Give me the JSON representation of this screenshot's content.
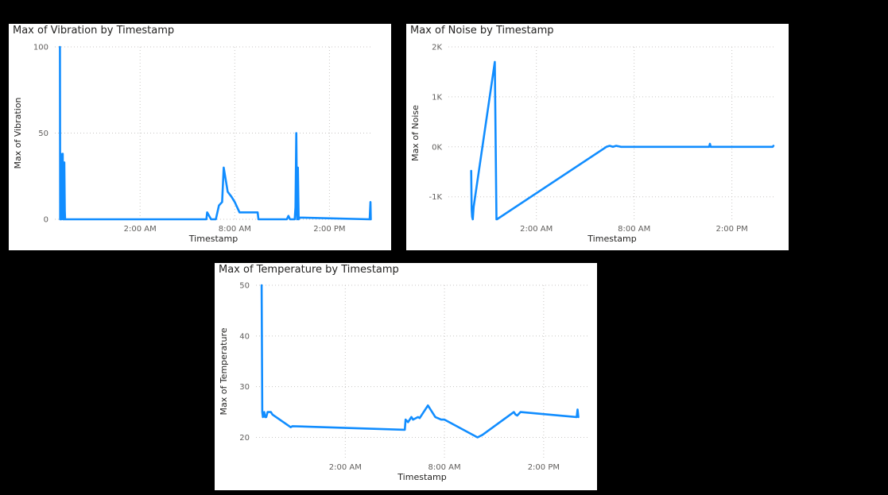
{
  "colors": {
    "background": "#000000",
    "panel": "#ffffff",
    "line": "#118DFF",
    "grid": "#c8c6c4",
    "text": "#252423",
    "tick": "#605e5c"
  },
  "chart_data": [
    {
      "id": "vibration",
      "type": "line",
      "title": "Max of Vibration by Timestamp",
      "xlabel": "Timestamp",
      "ylabel": "Max of Vibration",
      "xlim": [
        -3.4,
        16.7
      ],
      "ylim": [
        0,
        100
      ],
      "yticks": [
        {
          "v": 0,
          "label": "0"
        },
        {
          "v": 50,
          "label": "50"
        },
        {
          "v": 100,
          "label": "100"
        }
      ],
      "xticks": [
        {
          "v": 2,
          "label": "2:00 AM"
        },
        {
          "v": 8,
          "label": "8:00 AM"
        },
        {
          "v": 14,
          "label": "2:00 PM"
        }
      ],
      "grid": true,
      "series": [
        {
          "x": [
            -3.08,
            -3.06,
            -3.02,
            -2.98,
            -2.95,
            -2.9,
            -2.87,
            -2.84,
            -2.82,
            -2.8,
            -2.77,
            -2.75,
            -2.73,
            -2.7,
            -2.68,
            -2.65,
            -2.62,
            6.2,
            6.25,
            6.5,
            6.8,
            7.0,
            7.2,
            7.3,
            7.55,
            7.8,
            8.0,
            8.3,
            9.2,
            9.45,
            9.5,
            11.3,
            11.4,
            11.5,
            11.8,
            11.85,
            11.9,
            11.95,
            12.0,
            12.05,
            12.1,
            16.55,
            16.6,
            16.62
          ],
          "y": [
            100,
            0,
            38,
            0,
            5,
            38,
            0,
            25,
            0,
            33,
            5,
            0,
            0,
            0,
            0,
            0,
            0,
            0,
            4,
            0,
            0,
            8,
            10,
            30,
            16,
            13,
            10,
            4,
            4,
            4,
            0,
            0,
            2,
            0,
            0,
            7,
            50,
            0,
            30,
            0,
            1,
            0,
            10,
            0
          ]
        }
      ]
    },
    {
      "id": "noise",
      "type": "line",
      "title": "Max of Noise by Timestamp",
      "xlabel": "Timestamp",
      "ylabel": "Max of Noise",
      "xlim": [
        -3.4,
        16.7
      ],
      "ylim": [
        -1450,
        2000
      ],
      "yticks": [
        {
          "v": -1000,
          "label": "-1K"
        },
        {
          "v": 0,
          "label": "0K"
        },
        {
          "v": 1000,
          "label": "1K"
        },
        {
          "v": 2000,
          "label": "2K"
        }
      ],
      "xticks": [
        {
          "v": 2,
          "label": "2:00 AM"
        },
        {
          "v": 8,
          "label": "8:00 AM"
        },
        {
          "v": 14,
          "label": "2:00 PM"
        }
      ],
      "grid": true,
      "series": [
        {
          "x": [
            -2.0,
            -1.97,
            -1.94,
            -1.9,
            -1.85,
            -0.55,
            -0.45,
            -0.42,
            6.3,
            6.5,
            6.7,
            6.9,
            7.2,
            7.5,
            12.6,
            12.65,
            12.7,
            16.5,
            16.55
          ],
          "y": [
            -480,
            -1250,
            -1400,
            -1450,
            -1200,
            1700,
            -1450,
            -1450,
            0,
            20,
            0,
            20,
            0,
            0,
            0,
            60,
            0,
            0,
            20
          ]
        }
      ]
    },
    {
      "id": "temperature",
      "type": "line",
      "title": "Max of Temperature by Timestamp",
      "xlabel": "Timestamp",
      "ylabel": "Max of Temperature",
      "xlim": [
        -3.4,
        16.7
      ],
      "ylim": [
        16,
        50
      ],
      "yticks": [
        {
          "v": 20,
          "label": "20"
        },
        {
          "v": 30,
          "label": "30"
        },
        {
          "v": 40,
          "label": "40"
        },
        {
          "v": 50,
          "label": "50"
        }
      ],
      "xticks": [
        {
          "v": 2,
          "label": "2:00 AM"
        },
        {
          "v": 8,
          "label": "8:00 AM"
        },
        {
          "v": 14,
          "label": "2:00 PM"
        }
      ],
      "grid": true,
      "series": [
        {
          "x": [
            -3.06,
            -3.02,
            -2.98,
            -2.9,
            -2.85,
            -2.78,
            -2.7,
            -2.6,
            -2.5,
            -2.4,
            -1.3,
            -1.2,
            5.6,
            5.65,
            5.8,
            6.0,
            6.1,
            6.4,
            6.5,
            7.0,
            7.45,
            7.8,
            8.0,
            10.0,
            10.3,
            12.2,
            12.3,
            12.4,
            12.6,
            16.0,
            16.05,
            16.1
          ],
          "y": [
            50,
            25,
            24,
            25,
            24,
            24,
            25,
            25,
            25,
            24.5,
            22,
            22.2,
            21.5,
            23.5,
            23,
            24,
            23.5,
            24,
            23.8,
            26.3,
            24,
            23.5,
            23.5,
            20,
            20.5,
            25,
            24.5,
            24.3,
            25,
            24,
            25.5,
            24
          ]
        }
      ]
    }
  ]
}
